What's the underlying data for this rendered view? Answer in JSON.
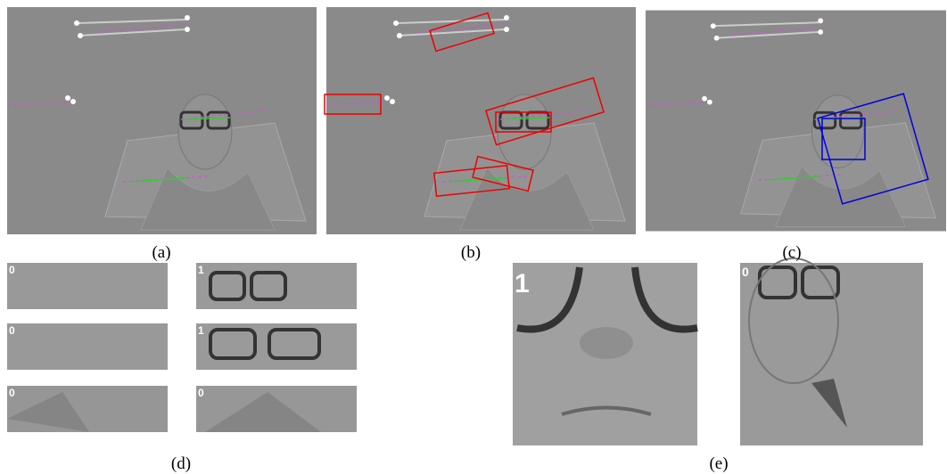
{
  "panels": [
    {
      "label": "(a)"
    },
    {
      "label": "(b)"
    },
    {
      "label": "(c)"
    }
  ],
  "patches_d": [
    {
      "label": "0"
    },
    {
      "label": "1"
    },
    {
      "label": "0"
    },
    {
      "label": "1"
    },
    {
      "label": "0"
    },
    {
      "label": "0"
    }
  ],
  "patches_e": [
    {
      "label": "1"
    },
    {
      "label": "0"
    }
  ],
  "group_labels": {
    "d": "(d)",
    "e": "(e)"
  }
}
